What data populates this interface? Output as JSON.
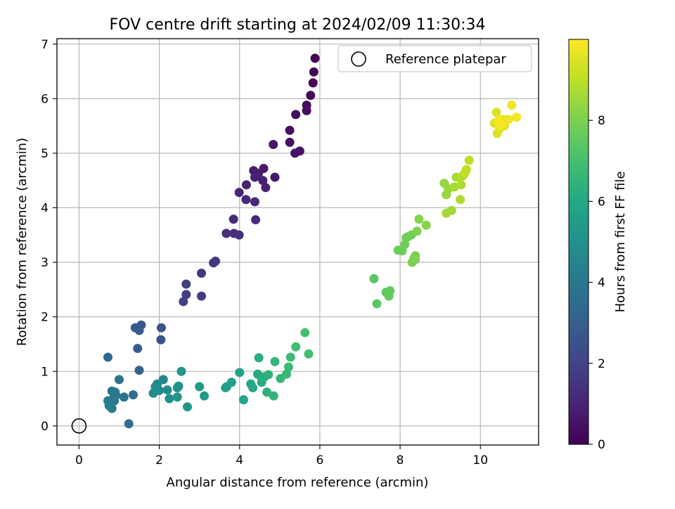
{
  "chart_data": {
    "type": "scatter",
    "title": "FOV centre drift starting at 2024/02/09 11:30:34",
    "xlabel": "Angular distance from reference (arcmin)",
    "ylabel": "Rotation from reference (arcmin)",
    "xlim": [
      -0.55,
      11.45
    ],
    "ylim": [
      -0.35,
      7.1
    ],
    "x_ticks": [
      "0",
      "2",
      "4",
      "6",
      "8",
      "10"
    ],
    "y_ticks": [
      "0",
      "1",
      "2",
      "3",
      "4",
      "5",
      "6",
      "7"
    ],
    "grid": true,
    "legend": {
      "placement": "upper-right",
      "entries": [
        "Reference platepar"
      ]
    },
    "reference_point": {
      "x": 0,
      "y": 0,
      "label": "Reference platepar"
    },
    "colorbar": {
      "label": "Hours from first FF file",
      "colormap": "viridis",
      "range": [
        0,
        10
      ],
      "ticks": [
        "0",
        "2",
        "4",
        "6",
        "8"
      ]
    },
    "points": [
      [
        5.88,
        6.74,
        0.05
      ],
      [
        5.85,
        6.49,
        0.1
      ],
      [
        5.83,
        6.29,
        0.15
      ],
      [
        5.77,
        6.06,
        0.2
      ],
      [
        5.67,
        5.88,
        0.25
      ],
      [
        5.67,
        5.78,
        0.3
      ],
      [
        5.4,
        5.71,
        0.35
      ],
      [
        5.25,
        5.42,
        0.4
      ],
      [
        5.25,
        5.2,
        0.45
      ],
      [
        5.5,
        5.04,
        0.5
      ],
      [
        5.38,
        5.0,
        0.55
      ],
      [
        4.84,
        5.16,
        0.6
      ],
      [
        4.88,
        4.56,
        0.65
      ],
      [
        4.6,
        4.72,
        0.7
      ],
      [
        4.35,
        4.68,
        0.75
      ],
      [
        4.47,
        4.63,
        0.8
      ],
      [
        4.58,
        4.5,
        0.85
      ],
      [
        4.38,
        4.56,
        0.9
      ],
      [
        4.65,
        4.37,
        0.95
      ],
      [
        4.17,
        4.42,
        1.0
      ],
      [
        3.99,
        4.28,
        1.05
      ],
      [
        4.16,
        4.15,
        1.1
      ],
      [
        4.38,
        4.11,
        1.15
      ],
      [
        4.4,
        3.78,
        1.2
      ],
      [
        3.85,
        3.79,
        1.25
      ],
      [
        3.67,
        3.53,
        1.3
      ],
      [
        3.86,
        3.53,
        1.35
      ],
      [
        3.99,
        3.5,
        1.4
      ],
      [
        3.4,
        3.02,
        1.5
      ],
      [
        3.35,
        2.99,
        1.55
      ],
      [
        3.05,
        2.8,
        1.65
      ],
      [
        3.05,
        2.38,
        1.7
      ],
      [
        2.67,
        2.6,
        1.8
      ],
      [
        2.67,
        2.41,
        1.85
      ],
      [
        2.6,
        2.28,
        1.9
      ],
      [
        2.05,
        1.8,
        2.5
      ],
      [
        2.04,
        1.58,
        2.6
      ],
      [
        1.55,
        1.85,
        2.7
      ],
      [
        1.4,
        1.8,
        2.8
      ],
      [
        1.5,
        1.75,
        2.85
      ],
      [
        1.46,
        1.42,
        2.95
      ],
      [
        1.5,
        1.02,
        3.1
      ],
      [
        0.72,
        1.26,
        3.3
      ],
      [
        1.35,
        0.57,
        3.6
      ],
      [
        1.24,
        0.04,
        3.7
      ],
      [
        1.12,
        0.53,
        3.8
      ],
      [
        1.0,
        0.85,
        3.85
      ],
      [
        0.82,
        0.64,
        3.9
      ],
      [
        0.9,
        0.62,
        3.95
      ],
      [
        0.92,
        0.56,
        4.0
      ],
      [
        0.85,
        0.5,
        4.05
      ],
      [
        0.78,
        0.45,
        4.05
      ],
      [
        0.72,
        0.46,
        4.1
      ],
      [
        0.75,
        0.37,
        4.15
      ],
      [
        0.82,
        0.32,
        4.2
      ],
      [
        0.88,
        0.46,
        4.1
      ],
      [
        2.1,
        0.85,
        4.6
      ],
      [
        1.9,
        0.72,
        4.7
      ],
      [
        1.95,
        0.77,
        4.75
      ],
      [
        1.85,
        0.6,
        4.8
      ],
      [
        2.0,
        0.65,
        4.85
      ],
      [
        2.2,
        0.66,
        4.9
      ],
      [
        2.25,
        0.5,
        4.95
      ],
      [
        2.45,
        0.7,
        5.0
      ],
      [
        2.48,
        0.73,
        5.05
      ],
      [
        2.45,
        0.53,
        5.1
      ],
      [
        2.55,
        1.0,
        5.2
      ],
      [
        2.7,
        0.35,
        5.3
      ],
      [
        3.0,
        0.72,
        5.35
      ],
      [
        3.12,
        0.55,
        5.4
      ],
      [
        3.65,
        0.7,
        5.6
      ],
      [
        3.68,
        0.72,
        5.65
      ],
      [
        3.8,
        0.8,
        5.7
      ],
      [
        4.0,
        0.98,
        5.8
      ],
      [
        4.1,
        0.48,
        5.9
      ],
      [
        4.28,
        0.77,
        6.0
      ],
      [
        4.33,
        0.7,
        6.05
      ],
      [
        4.45,
        0.95,
        6.1
      ],
      [
        4.55,
        0.88,
        6.15
      ],
      [
        4.55,
        0.8,
        6.2
      ],
      [
        4.48,
        1.25,
        6.25
      ],
      [
        4.62,
        0.9,
        6.3
      ],
      [
        4.68,
        0.62,
        6.35
      ],
      [
        4.72,
        0.94,
        6.4
      ],
      [
        4.85,
        0.55,
        6.45
      ],
      [
        4.88,
        1.18,
        6.55
      ],
      [
        5.02,
        0.87,
        6.6
      ],
      [
        5.17,
        0.95,
        6.65
      ],
      [
        5.22,
        1.08,
        6.7
      ],
      [
        5.27,
        1.26,
        6.8
      ],
      [
        5.4,
        1.45,
        6.9
      ],
      [
        5.72,
        1.32,
        7.0
      ],
      [
        5.63,
        1.71,
        7.05
      ],
      [
        7.35,
        2.7,
        7.4
      ],
      [
        7.42,
        2.24,
        7.45
      ],
      [
        7.65,
        2.45,
        7.5
      ],
      [
        7.75,
        2.48,
        7.55
      ],
      [
        7.72,
        2.38,
        7.6
      ],
      [
        7.95,
        3.22,
        7.7
      ],
      [
        8.05,
        3.21,
        7.75
      ],
      [
        8.12,
        3.33,
        7.8
      ],
      [
        8.15,
        3.45,
        7.8
      ],
      [
        8.2,
        3.47,
        7.85
      ],
      [
        8.28,
        3.5,
        7.9
      ],
      [
        8.35,
        3.08,
        7.95
      ],
      [
        8.3,
        3.0,
        8.0
      ],
      [
        8.38,
        3.12,
        8.0
      ],
      [
        8.38,
        3.05,
        8.05
      ],
      [
        8.42,
        3.57,
        8.1
      ],
      [
        8.47,
        3.79,
        8.15
      ],
      [
        8.65,
        3.68,
        8.2
      ],
      [
        9.1,
        4.45,
        8.4
      ],
      [
        9.15,
        4.24,
        8.45
      ],
      [
        9.2,
        4.35,
        8.5
      ],
      [
        9.28,
        3.95,
        8.55
      ],
      [
        9.15,
        3.9,
        8.6
      ],
      [
        9.35,
        4.38,
        8.65
      ],
      [
        9.4,
        4.56,
        8.7
      ],
      [
        9.5,
        4.15,
        8.75
      ],
      [
        9.52,
        4.42,
        8.8
      ],
      [
        9.55,
        4.58,
        8.85
      ],
      [
        9.6,
        4.62,
        8.9
      ],
      [
        9.65,
        4.7,
        8.95
      ],
      [
        9.62,
        4.65,
        9.0
      ],
      [
        9.72,
        4.87,
        9.05
      ],
      [
        10.35,
        5.55,
        9.4
      ],
      [
        10.4,
        5.75,
        9.45
      ],
      [
        10.42,
        5.36,
        9.5
      ],
      [
        10.48,
        5.45,
        9.55
      ],
      [
        10.55,
        5.62,
        9.6
      ],
      [
        10.6,
        5.5,
        9.65
      ],
      [
        10.65,
        5.62,
        9.7
      ],
      [
        10.7,
        5.62,
        9.75
      ],
      [
        10.78,
        5.88,
        9.8
      ],
      [
        10.9,
        5.66,
        9.85
      ],
      [
        10.45,
        5.6,
        9.9
      ],
      [
        10.5,
        5.52,
        9.9
      ]
    ]
  }
}
